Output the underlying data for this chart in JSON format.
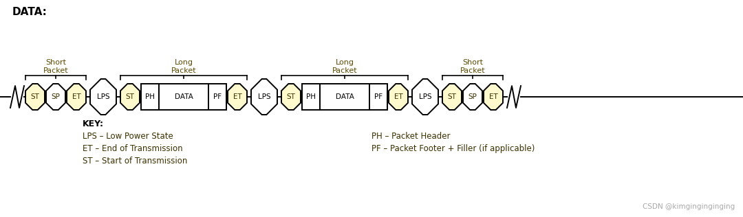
{
  "title": "DATA:",
  "bg_color": "#ffffff",
  "text_color": "#000000",
  "yellow_fill": "#FFFACD",
  "white_fill": "#ffffff",
  "border_color": "#000000",
  "key_label": "KEY:",
  "key_text": [
    "LPS – Low Power State",
    "ET – End of Transmission",
    "ST – Start of Transmission"
  ],
  "key_text2": [
    "PH – Packet Header",
    "PF – Packet Footer + Filler (if applicable)"
  ],
  "watermark": "CSDN @kimginginginging",
  "short_packet_label": "Short\nPacket",
  "long_packet_label": "Long\nPacket"
}
